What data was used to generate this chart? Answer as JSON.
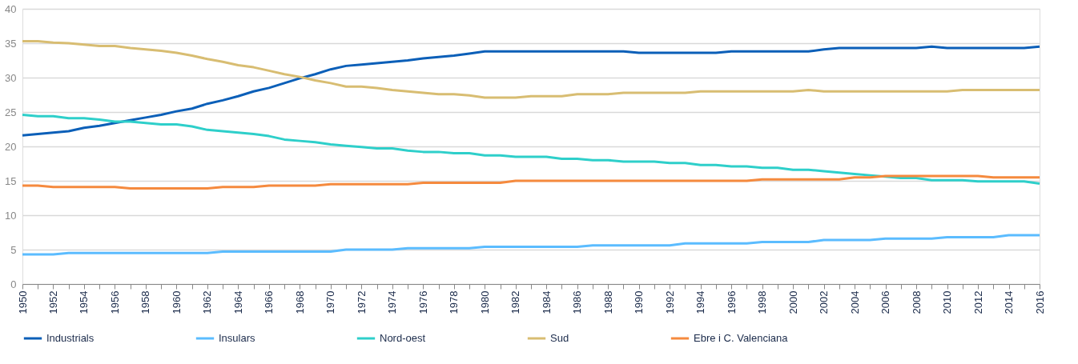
{
  "chart_data": {
    "type": "line",
    "x": [
      1950,
      1951,
      1952,
      1953,
      1954,
      1955,
      1956,
      1957,
      1958,
      1959,
      1960,
      1961,
      1962,
      1963,
      1964,
      1965,
      1966,
      1967,
      1968,
      1969,
      1970,
      1971,
      1972,
      1973,
      1974,
      1975,
      1976,
      1977,
      1978,
      1979,
      1980,
      1981,
      1982,
      1983,
      1984,
      1985,
      1986,
      1987,
      1988,
      1989,
      1990,
      1991,
      1992,
      1993,
      1994,
      1995,
      1996,
      1997,
      1998,
      1999,
      2000,
      2001,
      2002,
      2003,
      2004,
      2005,
      2006,
      2007,
      2008,
      2009,
      2010,
      2011,
      2012,
      2013,
      2014,
      2015,
      2016
    ],
    "series": [
      {
        "name": "Industrials",
        "color": "#0b5fb8",
        "values": [
          21.6,
          21.8,
          22.0,
          22.2,
          22.7,
          23.0,
          23.4,
          23.8,
          24.2,
          24.6,
          25.1,
          25.5,
          26.2,
          26.7,
          27.3,
          28.0,
          28.5,
          29.2,
          29.9,
          30.5,
          31.2,
          31.7,
          31.9,
          32.1,
          32.3,
          32.5,
          32.8,
          33.0,
          33.2,
          33.5,
          33.8,
          33.8,
          33.8,
          33.8,
          33.8,
          33.8,
          33.8,
          33.8,
          33.8,
          33.8,
          33.6,
          33.6,
          33.6,
          33.6,
          33.6,
          33.6,
          33.8,
          33.8,
          33.8,
          33.8,
          33.8,
          33.8,
          34.1,
          34.3,
          34.3,
          34.3,
          34.3,
          34.3,
          34.3,
          34.5,
          34.3,
          34.3,
          34.3,
          34.3,
          34.3,
          34.3,
          34.5
        ]
      },
      {
        "name": "Insulars",
        "color": "#5bbcff",
        "values": [
          4.3,
          4.3,
          4.3,
          4.5,
          4.5,
          4.5,
          4.5,
          4.5,
          4.5,
          4.5,
          4.5,
          4.5,
          4.5,
          4.7,
          4.7,
          4.7,
          4.7,
          4.7,
          4.7,
          4.7,
          4.7,
          5.0,
          5.0,
          5.0,
          5.0,
          5.2,
          5.2,
          5.2,
          5.2,
          5.2,
          5.4,
          5.4,
          5.4,
          5.4,
          5.4,
          5.4,
          5.4,
          5.6,
          5.6,
          5.6,
          5.6,
          5.6,
          5.6,
          5.9,
          5.9,
          5.9,
          5.9,
          5.9,
          6.1,
          6.1,
          6.1,
          6.1,
          6.4,
          6.4,
          6.4,
          6.4,
          6.6,
          6.6,
          6.6,
          6.6,
          6.8,
          6.8,
          6.8,
          6.8,
          7.1,
          7.1,
          7.1
        ]
      },
      {
        "name": "Nord-oest",
        "color": "#2ecfca",
        "values": [
          24.6,
          24.4,
          24.4,
          24.1,
          24.1,
          23.9,
          23.6,
          23.6,
          23.4,
          23.2,
          23.2,
          22.9,
          22.4,
          22.2,
          22.0,
          21.8,
          21.5,
          21.0,
          20.8,
          20.6,
          20.3,
          20.1,
          19.9,
          19.7,
          19.7,
          19.4,
          19.2,
          19.2,
          19.0,
          19.0,
          18.7,
          18.7,
          18.5,
          18.5,
          18.5,
          18.2,
          18.2,
          18.0,
          18.0,
          17.8,
          17.8,
          17.8,
          17.6,
          17.6,
          17.3,
          17.3,
          17.1,
          17.1,
          16.9,
          16.9,
          16.6,
          16.6,
          16.4,
          16.2,
          16.0,
          15.8,
          15.6,
          15.4,
          15.4,
          15.1,
          15.1,
          15.1,
          14.9,
          14.9,
          14.9,
          14.9,
          14.6
        ]
      },
      {
        "name": "Sud",
        "color": "#d8bd72",
        "values": [
          35.3,
          35.3,
          35.1,
          35.0,
          34.8,
          34.6,
          34.6,
          34.3,
          34.1,
          33.9,
          33.6,
          33.2,
          32.7,
          32.3,
          31.8,
          31.5,
          31.0,
          30.5,
          30.1,
          29.6,
          29.2,
          28.7,
          28.7,
          28.5,
          28.2,
          28.0,
          27.8,
          27.6,
          27.6,
          27.4,
          27.1,
          27.1,
          27.1,
          27.3,
          27.3,
          27.3,
          27.6,
          27.6,
          27.6,
          27.8,
          27.8,
          27.8,
          27.8,
          27.8,
          28.0,
          28.0,
          28.0,
          28.0,
          28.0,
          28.0,
          28.0,
          28.2,
          28.0,
          28.0,
          28.0,
          28.0,
          28.0,
          28.0,
          28.0,
          28.0,
          28.0,
          28.2,
          28.2,
          28.2,
          28.2,
          28.2,
          28.2
        ]
      },
      {
        "name": "Ebre i C. Valenciana",
        "color": "#f58a3e",
        "values": [
          14.3,
          14.3,
          14.1,
          14.1,
          14.1,
          14.1,
          14.1,
          13.9,
          13.9,
          13.9,
          13.9,
          13.9,
          13.9,
          14.1,
          14.1,
          14.1,
          14.3,
          14.3,
          14.3,
          14.3,
          14.5,
          14.5,
          14.5,
          14.5,
          14.5,
          14.5,
          14.7,
          14.7,
          14.7,
          14.7,
          14.7,
          14.7,
          15.0,
          15.0,
          15.0,
          15.0,
          15.0,
          15.0,
          15.0,
          15.0,
          15.0,
          15.0,
          15.0,
          15.0,
          15.0,
          15.0,
          15.0,
          15.0,
          15.2,
          15.2,
          15.2,
          15.2,
          15.2,
          15.2,
          15.5,
          15.5,
          15.7,
          15.7,
          15.7,
          15.7,
          15.7,
          15.7,
          15.7,
          15.5,
          15.5,
          15.5,
          15.5
        ]
      }
    ],
    "xlim": [
      1950,
      2016
    ],
    "xticks": [
      1950,
      {
        "value": 1951,
        "label": null
      },
      1952,
      {
        "value": 1953,
        "label": null
      },
      1954,
      {
        "value": 1955,
        "label": null
      },
      1956,
      {
        "value": 1957,
        "label": null
      },
      1958,
      {
        "value": 1959,
        "label": null
      },
      1960,
      {
        "value": 1961,
        "label": null
      },
      1962,
      {
        "value": 1963,
        "label": null
      },
      1964,
      {
        "value": 1965,
        "label": null
      },
      1966,
      {
        "value": 1967,
        "label": null
      },
      1968,
      {
        "value": 1969,
        "label": null
      },
      1970,
      {
        "value": 1971,
        "label": null
      },
      1972,
      {
        "value": 1973,
        "label": null
      },
      1974,
      {
        "value": 1975,
        "label": null
      },
      1976,
      {
        "value": 1977,
        "label": null
      },
      1978,
      {
        "value": 1979,
        "label": null
      },
      1980,
      {
        "value": 1981,
        "label": null
      },
      1982,
      {
        "value": 1983,
        "label": null
      },
      1984,
      {
        "value": 1985,
        "label": null
      },
      1986,
      {
        "value": 1987,
        "label": null
      },
      1988,
      {
        "value": 1989,
        "label": null
      },
      1990,
      {
        "value": 1991,
        "label": null
      },
      1992,
      {
        "value": 1993,
        "label": null
      },
      1994,
      {
        "value": 1995,
        "label": null
      },
      1996,
      {
        "value": 1997,
        "label": null
      },
      1998,
      {
        "value": 1999,
        "label": null
      },
      2000,
      {
        "value": 2001,
        "label": null
      },
      2002,
      {
        "value": 2003,
        "label": null
      },
      2004,
      {
        "value": 2005,
        "label": null
      },
      2006,
      {
        "value": 2007,
        "label": null
      },
      2008,
      {
        "value": 2009,
        "label": null
      },
      2010,
      {
        "value": 2011,
        "label": null
      },
      2012,
      {
        "value": 2013,
        "label": null
      },
      2014,
      {
        "value": 2015,
        "label": null
      },
      2016
    ],
    "ylim": [
      0,
      40
    ],
    "yticks": [
      0,
      5,
      10,
      15,
      20,
      25,
      30,
      35,
      40
    ],
    "grid": "y",
    "legend": "bottom",
    "marker": "none",
    "line_style": "solid"
  }
}
